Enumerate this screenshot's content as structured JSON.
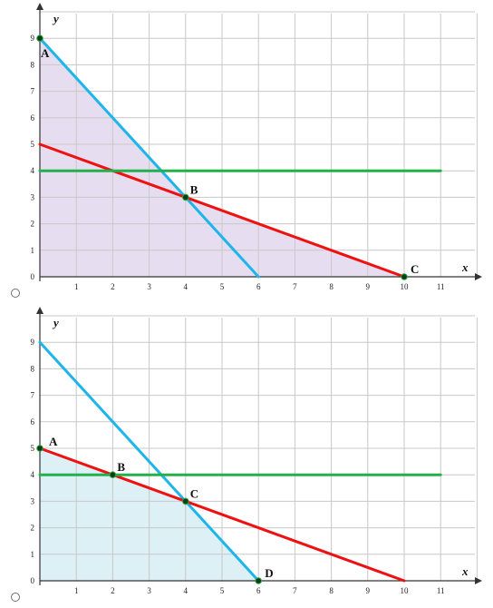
{
  "options": [
    {
      "radio_selected": false,
      "chart_data": {
        "type": "line",
        "xlabel": "x",
        "ylabel": "y",
        "xlim": [
          0,
          12
        ],
        "ylim": [
          0,
          10
        ],
        "x_ticks": [
          1,
          2,
          3,
          4,
          5,
          6,
          7,
          8,
          9,
          10,
          11
        ],
        "y_ticks": [
          0,
          1,
          2,
          3,
          4,
          5,
          6,
          7,
          8,
          9
        ],
        "grid": true,
        "series": [
          {
            "color": "#1eb5ea",
            "points": [
              [
                0,
                9
              ],
              [
                6,
                0
              ]
            ]
          },
          {
            "color": "#ee1111",
            "points": [
              [
                0,
                5
              ],
              [
                10,
                0
              ]
            ]
          },
          {
            "color": "#22b04b",
            "points": [
              [
                0,
                4
              ],
              [
                11,
                4
              ]
            ]
          }
        ],
        "shaded_region": {
          "color": "#e6ddf0",
          "points": [
            [
              0,
              9
            ],
            [
              4,
              3
            ],
            [
              10,
              0
            ],
            [
              0,
              0
            ]
          ]
        },
        "points": [
          {
            "label": "A",
            "x": 0,
            "y": 9
          },
          {
            "label": "B",
            "x": 4,
            "y": 3
          },
          {
            "label": "C",
            "x": 10,
            "y": 0
          }
        ]
      }
    },
    {
      "radio_selected": false,
      "chart_data": {
        "type": "line",
        "xlabel": "x",
        "ylabel": "y",
        "xlim": [
          0,
          12
        ],
        "ylim": [
          0,
          10
        ],
        "x_ticks": [
          1,
          2,
          3,
          4,
          5,
          6,
          7,
          8,
          9,
          10,
          11
        ],
        "y_ticks": [
          0,
          1,
          2,
          3,
          4,
          5,
          6,
          7,
          8,
          9
        ],
        "grid": true,
        "series": [
          {
            "color": "#1eb5ea",
            "points": [
              [
                0,
                9
              ],
              [
                6,
                0
              ]
            ]
          },
          {
            "color": "#ee1111",
            "points": [
              [
                0,
                5
              ],
              [
                10,
                0
              ]
            ]
          },
          {
            "color": "#22b04b",
            "points": [
              [
                0,
                4
              ],
              [
                11,
                4
              ]
            ]
          }
        ],
        "shaded_region": {
          "color": "#dcf0f6",
          "points": [
            [
              0,
              5
            ],
            [
              2,
              4
            ],
            [
              4,
              3
            ],
            [
              6,
              0
            ],
            [
              0,
              0
            ]
          ]
        },
        "points": [
          {
            "label": "A",
            "x": 0,
            "y": 5
          },
          {
            "label": "B",
            "x": 2,
            "y": 4
          },
          {
            "label": "C",
            "x": 4,
            "y": 3
          },
          {
            "label": "D",
            "x": 6,
            "y": 0
          }
        ]
      }
    }
  ]
}
